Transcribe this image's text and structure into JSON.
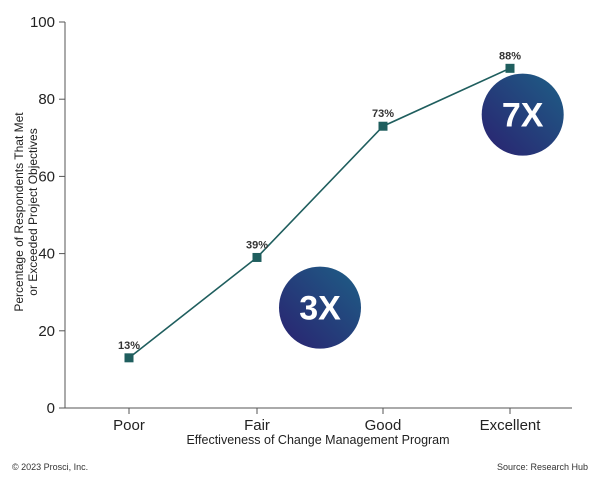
{
  "chart_data": {
    "type": "line",
    "categories": [
      "Poor",
      "Fair",
      "Good",
      "Excellent"
    ],
    "values": [
      13,
      39,
      73,
      88
    ],
    "data_labels": [
      "13%",
      "39%",
      "73%",
      "88%"
    ],
    "title": "",
    "xlabel": "Effectiveness of Change Management Program",
    "ylabel_lines": [
      "Percentage of Respondents That Met",
      "or Exceeded Project Objectives"
    ],
    "ylim": [
      0,
      100
    ],
    "yticks": [
      0,
      20,
      40,
      60,
      80,
      100
    ],
    "grid": false,
    "line_color": "#1f5e5e",
    "marker_color": "#1f5e5e",
    "annotations": [
      {
        "text": "3X",
        "category_index": 1.5,
        "y": 26,
        "gradient": [
          "#2a2170",
          "#1e5f86"
        ]
      },
      {
        "text": "7X",
        "category_index": 3.1,
        "y": 76,
        "gradient": [
          "#2a2170",
          "#1e5f86"
        ]
      }
    ]
  },
  "footer": {
    "copyright": "© 2023 Prosci, Inc.",
    "source": "Source: Research Hub"
  }
}
